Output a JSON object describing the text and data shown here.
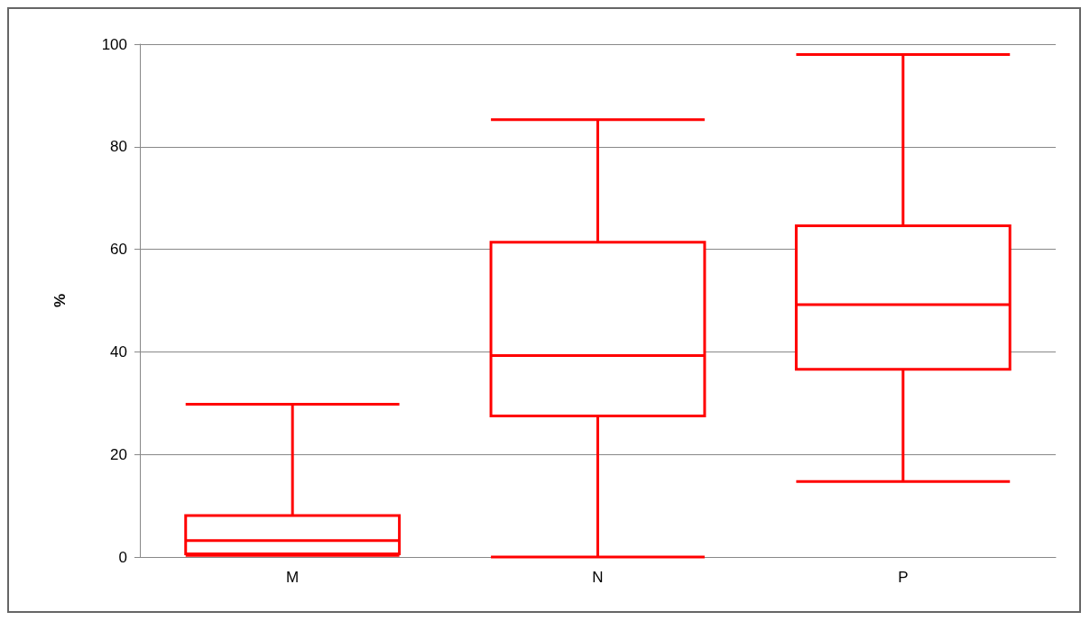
{
  "chart_data": {
    "type": "box",
    "ylabel": "%",
    "categories": [
      "M",
      "N",
      "P"
    ],
    "ylim": [
      0,
      100
    ],
    "yticks": [
      0,
      20,
      40,
      60,
      80,
      100
    ],
    "grid": "y",
    "color": "#ff0000",
    "boxes": [
      {
        "low": 0.3,
        "q1": 0.6,
        "median": 3.2,
        "q3": 8.1,
        "high": 29.8
      },
      {
        "low": 0,
        "q1": 27.5,
        "median": 39.3,
        "q3": 61.4,
        "high": 85.3
      },
      {
        "low": 14.7,
        "q1": 36.6,
        "median": 49.2,
        "q3": 64.6,
        "high": 98
      }
    ]
  }
}
